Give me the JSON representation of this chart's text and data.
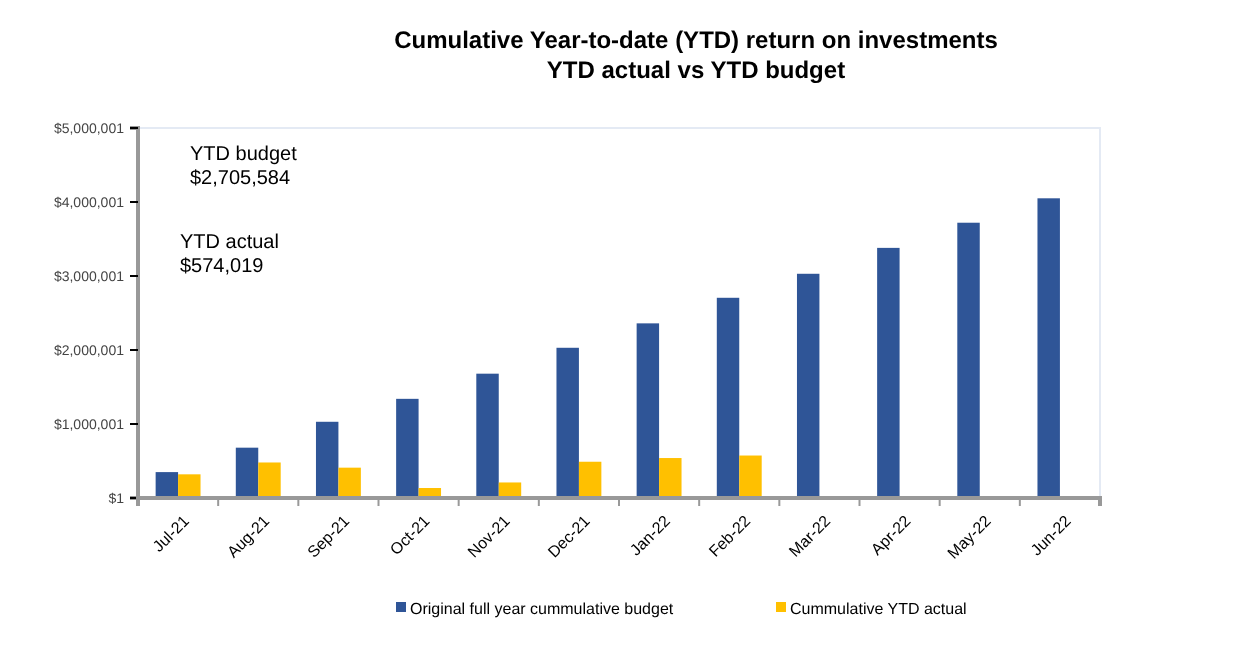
{
  "chart_data": {
    "type": "bar",
    "title": "Cumulative Year-to-date (YTD) return on investments\nYTD actual vs YTD budget",
    "categories": [
      "Jul-21",
      "Aug-21",
      "Sep-21",
      "Oct-21",
      "Nov-21",
      "Dec-21",
      "Jan-22",
      "Feb-22",
      "Mar-22",
      "Apr-22",
      "May-22",
      "Jun-22"
    ],
    "series": [
      {
        "name": "Original full year cummulative budget",
        "color": "#2f5597",
        "values": [
          350000,
          680000,
          1030000,
          1340000,
          1680000,
          2030000,
          2360000,
          2705584,
          3030000,
          3380000,
          3720000,
          4050000
        ]
      },
      {
        "name": "Cummulative YTD actual",
        "color": "#ffc000",
        "values": [
          320000,
          480000,
          410000,
          135000,
          210000,
          490000,
          540000,
          574019,
          null,
          null,
          null,
          null
        ]
      }
    ],
    "ylim": [
      1,
      5000001
    ],
    "yticks": [
      {
        "value": 1,
        "label": "$1"
      },
      {
        "value": 1000001,
        "label": "$1,000,001"
      },
      {
        "value": 2000001,
        "label": "$2,000,001"
      },
      {
        "value": 3000001,
        "label": "$3,000,001"
      },
      {
        "value": 4000001,
        "label": "$4,000,001"
      },
      {
        "value": 5000001,
        "label": "$5,000,001"
      }
    ],
    "annotations": [
      "YTD budget\n$2,705,584",
      "YTD actual\n$574,019"
    ],
    "legend": "bottom",
    "grid": false
  }
}
